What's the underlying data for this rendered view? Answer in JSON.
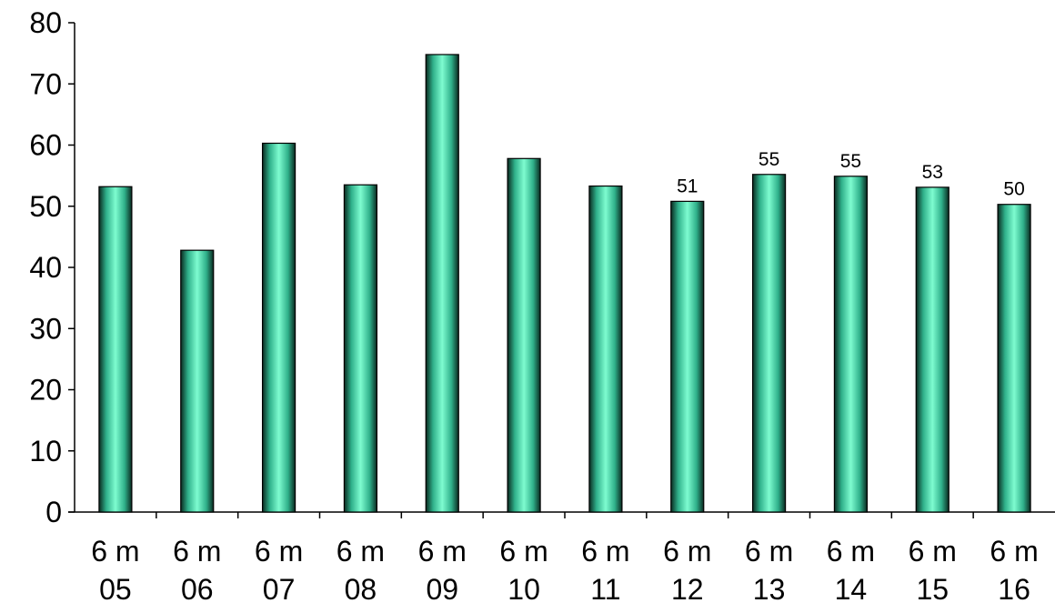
{
  "chart_data": {
    "type": "bar",
    "categories": [
      [
        "6 m",
        "05"
      ],
      [
        "6 m",
        "06"
      ],
      [
        "6 m",
        "07"
      ],
      [
        "6 m",
        "08"
      ],
      [
        "6 m",
        "09"
      ],
      [
        "6 m",
        "10"
      ],
      [
        "6 m",
        "11"
      ],
      [
        "6 m",
        "12"
      ],
      [
        "6 m",
        "13"
      ],
      [
        "6 m",
        "14"
      ],
      [
        "6 m",
        "15"
      ],
      [
        "6 m",
        "16"
      ]
    ],
    "values": [
      53.2,
      42.8,
      60.3,
      53.5,
      74.8,
      57.8,
      53.3,
      50.8,
      55.2,
      54.9,
      53.1,
      50.3
    ],
    "data_labels": [
      null,
      null,
      null,
      null,
      null,
      null,
      null,
      "51",
      "55",
      "55",
      "53",
      "50"
    ],
    "title": "",
    "xlabel": "",
    "ylabel": "",
    "ylim": [
      0,
      80
    ],
    "yticks": [
      0,
      10,
      20,
      30,
      40,
      50,
      60,
      70,
      80
    ],
    "grid": false,
    "legend": "none",
    "colors": {
      "bar_center": "#7efcd0",
      "bar_mid": "#2fb08a",
      "bar_edge": "#0a2a20",
      "axis": "#000000"
    }
  }
}
